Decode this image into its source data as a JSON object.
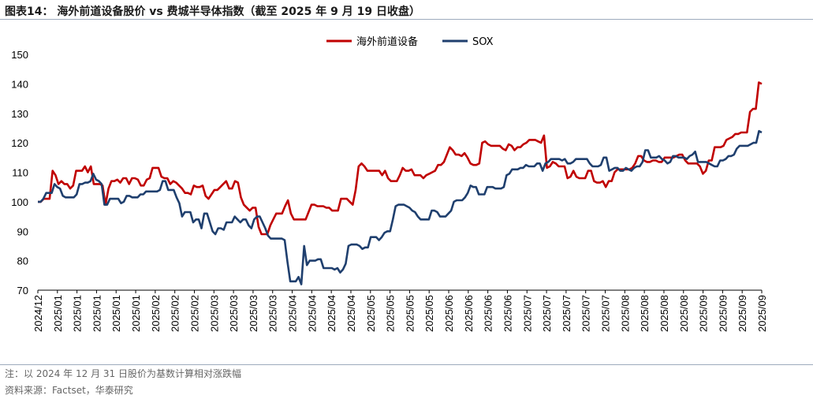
{
  "header": {
    "title": "图表14：  海外前道设备股价 vs 费城半导体指数（截至 2025 年 9 月 19 日收盘）"
  },
  "footer": {
    "note": "注：以 2024 年 12 月 31 日股价为基数计算相对涨跌幅",
    "source": "资料来源：Factset，华泰研究"
  },
  "colors": {
    "equipment": "#c00000",
    "sox": "#1f3f6e"
  },
  "chart_data": {
    "type": "line",
    "ylim": [
      70,
      150
    ],
    "yticks": [
      70,
      80,
      90,
      100,
      110,
      120,
      130,
      140,
      150
    ],
    "xtick_labels": [
      "2024/12",
      "2025/01",
      "2025/01",
      "2025/01",
      "2025/01",
      "2025/01",
      "2025/02",
      "2025/02",
      "2025/02",
      "2025/03",
      "2025/03",
      "2025/03",
      "2025/03",
      "2025/04",
      "2025/04",
      "2025/04",
      "2025/04",
      "2025/05",
      "2025/05",
      "2025/05",
      "2025/05",
      "2025/06",
      "2025/06",
      "2025/06",
      "2025/06",
      "2025/07",
      "2025/07",
      "2025/07",
      "2025/07",
      "2025/07",
      "2025/08",
      "2025/08",
      "2025/08",
      "2025/08",
      "2025/09",
      "2025/09",
      "2025/09",
      "2025/09"
    ],
    "legend_position": "top",
    "grid": false,
    "series": [
      {
        "name": "海外前道设备",
        "values": [
          100,
          100,
          101,
          101,
          101,
          110.5,
          109,
          106,
          107,
          106,
          106,
          104.5,
          105.5,
          110.5,
          110.5,
          110.5,
          112,
          110,
          112,
          106,
          106,
          106,
          105.5,
          99,
          104.5,
          107,
          107,
          107.5,
          106.5,
          108,
          108,
          106,
          108,
          108,
          107.5,
          105.5,
          105.5,
          107.5,
          108,
          111.5,
          111.5,
          111.5,
          108.5,
          108,
          108,
          106,
          107,
          106.5,
          105.5,
          104.5,
          103,
          103,
          102.5,
          105.5,
          105,
          105,
          105.5,
          102,
          101,
          102.5,
          104,
          104,
          105,
          106,
          107,
          104.5,
          104.5,
          107,
          106.5,
          101.5,
          99,
          98,
          97,
          98,
          98,
          91.5,
          89,
          89,
          89,
          92,
          94,
          96,
          96,
          96,
          98.5,
          100.5,
          96,
          94,
          94,
          94,
          94,
          94,
          96.5,
          99,
          99,
          98.5,
          98.5,
          98.5,
          98,
          98,
          97,
          97,
          97,
          101,
          101,
          101,
          100,
          99,
          104,
          112,
          113,
          112,
          110.5,
          110.5,
          110.5,
          110.5,
          110.5,
          109,
          110.5,
          108,
          107,
          107,
          107,
          109,
          111.5,
          110.5,
          110.5,
          111,
          109,
          109,
          109,
          108,
          109,
          109.5,
          110,
          110.5,
          112.5,
          112.5,
          113.5,
          116,
          118.5,
          117.5,
          116,
          116,
          115.5,
          116.5,
          115,
          113,
          112.5,
          112.5,
          113,
          120,
          120.5,
          119.5,
          119,
          119,
          119,
          119,
          118,
          117.5,
          119.5,
          119,
          117.5,
          118.5,
          118.5,
          119.5,
          120,
          121,
          121,
          121,
          120.5,
          120,
          122.5,
          111.5,
          112,
          113.5,
          113,
          112,
          112,
          112,
          108,
          108.5,
          110.5,
          108.5,
          108,
          108,
          108,
          110.5,
          110.5,
          107,
          106.5,
          106.5,
          107,
          105,
          107,
          107,
          110,
          111,
          111,
          111,
          111,
          111,
          111.5,
          113,
          115.5,
          115.5,
          114,
          113.5,
          113.5,
          114,
          114,
          113.5,
          113.5,
          115,
          115,
          115,
          115,
          115.5,
          116,
          116,
          114,
          113,
          113,
          113,
          113,
          112,
          109.5,
          110.5,
          114,
          114,
          118.5,
          118.5,
          118.5,
          119,
          121,
          121.5,
          122,
          123,
          123,
          123.5,
          123.5,
          123.5,
          130.5,
          131.5,
          131.5,
          140.5,
          140
        ]
      },
      {
        "name": "SOX",
        "values": [
          100,
          100,
          101,
          103,
          103,
          103,
          106,
          105,
          104.5,
          102,
          101.5,
          101.5,
          101.5,
          101.5,
          102.5,
          106,
          106,
          106.5,
          106.5,
          107,
          109.5,
          107.5,
          107,
          106,
          99,
          99,
          101,
          101,
          101,
          101,
          99.5,
          100,
          102,
          102,
          101.5,
          101.5,
          101.5,
          102.5,
          102.5,
          103.5,
          103.5,
          103.5,
          103.5,
          103.5,
          104,
          107,
          107,
          104,
          104,
          104,
          101.5,
          99.5,
          95,
          96.5,
          96.5,
          96.5,
          93,
          94,
          94,
          91,
          96,
          96,
          93,
          90,
          89,
          91,
          91,
          90.5,
          93,
          93,
          93,
          95,
          94,
          93,
          94,
          94,
          92,
          91,
          94,
          95,
          95,
          93,
          91,
          88.5,
          87.5,
          87.5,
          87.5,
          87.5,
          87.5,
          87,
          79.5,
          73,
          73,
          73,
          74.5,
          72,
          85,
          78.5,
          80,
          80,
          80,
          80.5,
          80.5,
          77.5,
          77.5,
          77.5,
          77.5,
          77,
          77.5,
          76,
          77,
          79,
          85,
          85.5,
          85.5,
          85.5,
          85,
          84,
          84.5,
          84.5,
          88,
          88,
          88,
          87,
          88,
          89.5,
          90,
          90,
          94,
          98.5,
          99,
          99,
          99,
          98.5,
          98,
          97,
          96.5,
          95,
          94,
          94,
          94,
          94,
          97,
          97,
          96.5,
          95,
          95,
          95,
          96,
          97,
          100,
          100.5,
          100.5,
          100.5,
          101.5,
          103,
          105.5,
          105,
          105,
          102.5,
          102.5,
          102.5,
          105,
          105,
          105,
          104.5,
          104.5,
          104.5,
          105,
          109,
          109.5,
          111,
          111,
          111,
          111.5,
          111.5,
          112.5,
          112,
          112,
          112,
          113,
          113,
          110.5,
          113,
          113.5,
          114.5,
          114.5,
          114.5,
          114.5,
          114,
          114.5,
          113,
          113,
          113.5,
          114.5,
          114.5,
          114.5,
          114.5,
          114.5,
          113,
          112,
          112,
          112,
          112.5,
          115,
          115,
          110.5,
          111,
          111.5,
          111.5,
          110.5,
          110.5,
          111.5,
          111,
          110.5,
          111.5,
          112,
          112,
          113.5,
          117.5,
          117.5,
          115,
          115,
          115,
          115.5,
          114.5,
          114,
          113,
          113.5,
          115.5,
          115.5,
          115,
          115,
          115,
          114.5,
          115.5,
          116,
          117,
          113.5,
          113.5,
          113.5,
          113.5,
          113,
          112.5,
          112,
          112,
          114,
          114,
          114.5,
          115.5,
          115.5,
          116,
          118,
          119,
          119,
          119,
          119,
          119.5,
          120,
          120,
          124,
          123.5
        ]
      }
    ]
  }
}
